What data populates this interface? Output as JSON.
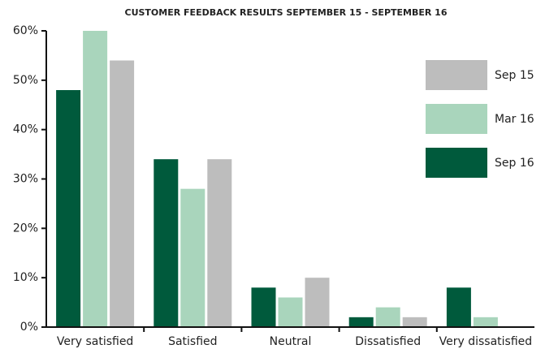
{
  "chart_data": {
    "type": "bar",
    "title": "CUSTOMER FEEDBACK RESULTS SEPTEMBER 15 - SEPTEMBER 16",
    "categories": [
      "Very satisfied",
      "Satisfied",
      "Neutral",
      "Dissatisfied",
      "Very dissatisfied"
    ],
    "series": [
      {
        "name": "Sep 16",
        "color": "#005a3c",
        "values": [
          48,
          34,
          8,
          2,
          8
        ]
      },
      {
        "name": "Mar 16",
        "color": "#a9d5bc",
        "values": [
          60,
          28,
          6,
          4,
          2
        ]
      },
      {
        "name": "Sep 15",
        "color": "#bdbdbd",
        "values": [
          54,
          34,
          10,
          2,
          0
        ]
      }
    ],
    "ylim": [
      0,
      60
    ],
    "yticks": [
      {
        "value": 0,
        "label": "0%"
      },
      {
        "value": 10,
        "label": "10%"
      },
      {
        "value": 20,
        "label": "20%"
      },
      {
        "value": 30,
        "label": "30%"
      },
      {
        "value": 40,
        "label": "40%"
      },
      {
        "value": 50,
        "label": "50%"
      },
      {
        "value": 60,
        "label": "60%"
      }
    ],
    "grid": false,
    "legend": "right"
  }
}
